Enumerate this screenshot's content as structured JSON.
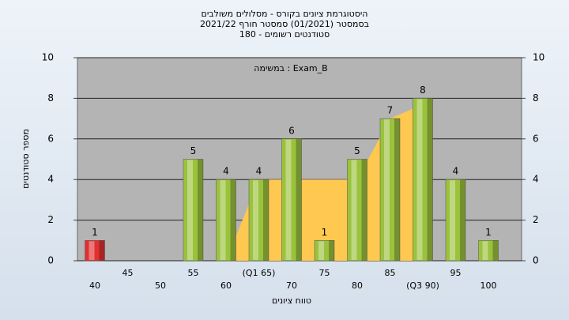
{
  "chart_data": {
    "type": "bar",
    "title": [
      "היסטוגרמת ציונים בקורס - מסלולים משולבים",
      "בסמסטר  (01/2021)  סמסטר חורף 2021/22",
      "סטודנטים רשומים - 180"
    ],
    "annotation": "במשימה : Exam_B",
    "x_label": "טווח ציונים",
    "y_label": "מספר סטודנטים",
    "categories": [
      "40",
      "45",
      "50",
      "55",
      "60",
      "(Q1 65)",
      "70",
      "75",
      "80",
      "85",
      "(Q3 90)",
      "95",
      "100"
    ],
    "values": [
      1,
      0,
      0,
      5,
      4,
      4,
      6,
      1,
      5,
      7,
      8,
      4,
      1
    ],
    "bar_colors": [
      "#e03030",
      "#9bc23c",
      "#9bc23c",
      "#9bc23c",
      "#9bc23c",
      "#9bc23c",
      "#9bc23c",
      "#9bc23c",
      "#9bc23c",
      "#9bc23c",
      "#9bc23c",
      "#9bc23c",
      "#9bc23c"
    ],
    "area": {
      "color": "#ffc850",
      "values": [
        null,
        null,
        null,
        null,
        0,
        4,
        4,
        4,
        4,
        7,
        7.7,
        null,
        null
      ]
    },
    "ylim": [
      0,
      10
    ],
    "yticks": [
      0,
      2,
      4,
      6,
      8,
      10
    ],
    "grid": true
  }
}
